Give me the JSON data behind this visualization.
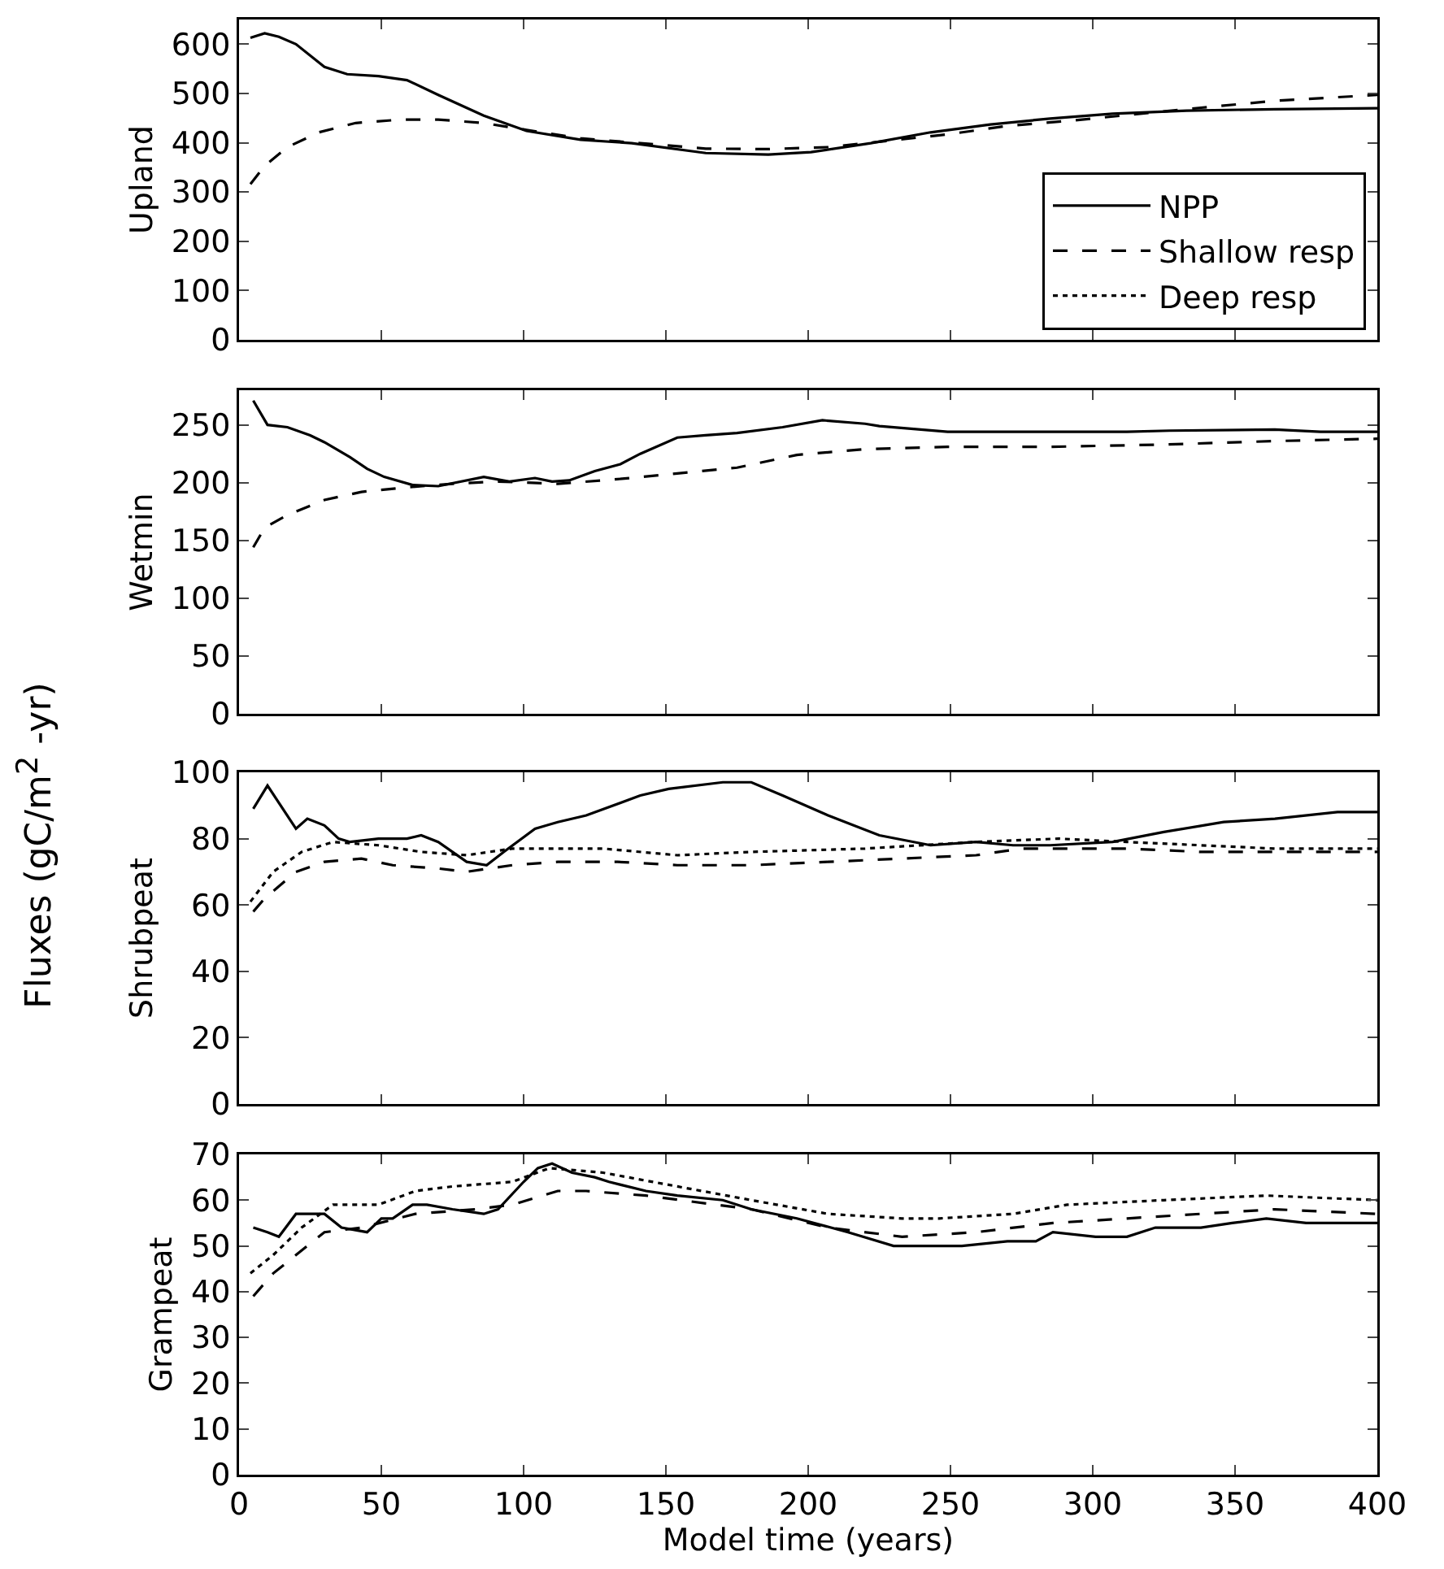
{
  "chart_data": [
    {
      "type": "line",
      "ylabel": "Upland",
      "annotations": [
        "Fluxes (gC/m$^{2}$ -yr)"
      ],
      "xlim": [
        0,
        400
      ],
      "xticks": [
        0,
        50,
        100,
        150,
        200,
        250,
        300,
        350,
        400
      ],
      "ylim": [
        0,
        650
      ],
      "yticks": [
        0,
        100,
        200,
        300,
        400,
        500,
        600
      ],
      "tick_labels": "y",
      "grid": false,
      "legend": "bottom right",
      "marker": "none",
      "series": [
        {
          "name": "NPP",
          "color": "#000000",
          "line_style": "solid",
          "x": [
            4,
            9,
            14,
            20,
            30,
            38,
            49,
            59,
            70,
            86,
            101,
            120,
            138,
            164,
            186,
            201,
            222,
            243,
            264,
            285,
            307,
            333,
            364,
            400
          ],
          "values": [
            613,
            622,
            615,
            600,
            554,
            539,
            535,
            527,
            497,
            455,
            424,
            406,
            399,
            379,
            376,
            381,
            399,
            421,
            437,
            449,
            459,
            465,
            468,
            470
          ]
        },
        {
          "name": "Shallow resp",
          "color": "#000000",
          "line_style": "dashed",
          "x": [
            4,
            9,
            17,
            28,
            41,
            57,
            70,
            86,
            101,
            120,
            141,
            164,
            186,
            207,
            225,
            249,
            270,
            291,
            312,
            338,
            364,
            400
          ],
          "values": [
            316,
            353,
            391,
            421,
            440,
            447,
            447,
            440,
            426,
            409,
            399,
            388,
            387,
            391,
            402,
            417,
            434,
            444,
            456,
            471,
            485,
            497
          ]
        },
        {
          "name": "Deep resp",
          "color": "#000000",
          "line_style": "dotted",
          "values": [
            null,
            null
          ]
        }
      ]
    },
    {
      "type": "line",
      "ylabel": "Wetmin",
      "xlim": [
        0,
        400
      ],
      "xticks": [
        0,
        50,
        100,
        150,
        200,
        250,
        300,
        350,
        400
      ],
      "ylim": [
        0,
        280
      ],
      "yticks": [
        0,
        50,
        100,
        150,
        200,
        250
      ],
      "tick_labels": "y",
      "grid": false,
      "marker": "none",
      "series": [
        {
          "color": "#000000",
          "line_style": "solid",
          "x": [
            5,
            10,
            17,
            25,
            30,
            39,
            45,
            51,
            61,
            70,
            86,
            95,
            104,
            110,
            116,
            125,
            134,
            141,
            154,
            164,
            175,
            191,
            205,
            220,
            225,
            249,
            275,
            312,
            327,
            364,
            380,
            400
          ],
          "values": [
            271,
            250,
            248,
            241,
            235,
            222,
            212,
            205,
            198,
            197,
            205,
            201,
            204,
            201,
            202,
            210,
            216,
            225,
            239,
            241,
            243,
            248,
            254,
            251,
            249,
            244,
            244,
            244,
            245,
            246,
            244,
            244
          ]
        },
        {
          "color": "#000000",
          "line_style": "dashed",
          "x": [
            5,
            9,
            17,
            30,
            43,
            59,
            75,
            91,
            112,
            133,
            154,
            175,
            196,
            220,
            249,
            285,
            325,
            364,
            400
          ],
          "values": [
            144,
            161,
            172,
            185,
            192,
            196,
            199,
            201,
            199,
            203,
            208,
            213,
            224,
            229,
            231,
            231,
            233,
            236,
            238
          ]
        }
      ]
    },
    {
      "type": "line",
      "ylabel": "Shrubpeat",
      "xlim": [
        0,
        400
      ],
      "xticks": [
        0,
        50,
        100,
        150,
        200,
        250,
        300,
        350,
        400
      ],
      "ylim": [
        0,
        100
      ],
      "yticks": [
        0,
        20,
        40,
        60,
        80,
        100
      ],
      "tick_labels": "y",
      "grid": false,
      "marker": "none",
      "series": [
        {
          "color": "#000000",
          "line_style": "solid",
          "x": [
            5,
            10,
            20,
            24,
            30,
            35,
            39,
            49,
            59,
            64,
            70,
            80,
            87,
            93,
            104,
            112,
            122,
            141,
            151,
            170,
            180,
            191,
            207,
            225,
            243,
            259,
            272,
            285,
            307,
            325,
            346,
            364,
            386,
            400
          ],
          "values": [
            89,
            96,
            83,
            86,
            84,
            80,
            79,
            80,
            80,
            81,
            79,
            73,
            72,
            76,
            83,
            85,
            87,
            93,
            95,
            97,
            97,
            93,
            87,
            81,
            78,
            79,
            78,
            78,
            79,
            82,
            85,
            86,
            88,
            88
          ]
        },
        {
          "color": "#000000",
          "line_style": "dashed",
          "x": [
            5,
            9,
            20,
            30,
            43,
            54,
            70,
            80,
            96,
            112,
            133,
            154,
            180,
            207,
            233,
            259,
            275,
            312,
            338,
            364,
            400
          ],
          "values": [
            58,
            62,
            70,
            73,
            74,
            72,
            71,
            70,
            72,
            73,
            73,
            72,
            72,
            73,
            74,
            75,
            77,
            77,
            76,
            76,
            76
          ]
        },
        {
          "color": "#000000",
          "line_style": "dotted",
          "x": [
            4,
            12,
            22,
            33,
            49,
            64,
            80,
            96,
            128,
            154,
            180,
            220,
            259,
            288,
            312,
            338,
            364,
            400
          ],
          "values": [
            61,
            70,
            76,
            79,
            78,
            76,
            75,
            77,
            77,
            75,
            76,
            77,
            79,
            80,
            79,
            78,
            77,
            77
          ]
        }
      ]
    },
    {
      "type": "line",
      "ylabel": "Grampeat",
      "xlabel": "Model time (years)",
      "xlim": [
        0,
        400
      ],
      "xticks": [
        0,
        50,
        100,
        150,
        200,
        250,
        300,
        350,
        400
      ],
      "ylim": [
        0,
        70
      ],
      "yticks": [
        0,
        10,
        20,
        30,
        40,
        50,
        60,
        70
      ],
      "grid": false,
      "marker": "none",
      "series": [
        {
          "color": "#000000",
          "line_style": "solid",
          "x": [
            5,
            10,
            14,
            20,
            30,
            36,
            45,
            50,
            54,
            61,
            66,
            75,
            86,
            91,
            100,
            105,
            110,
            117,
            125,
            130,
            143,
            154,
            170,
            180,
            196,
            214,
            230,
            241,
            254,
            270,
            280,
            286,
            301,
            312,
            322,
            338,
            349,
            361,
            375,
            400
          ],
          "values": [
            54,
            53,
            52,
            57,
            57,
            54,
            53,
            56,
            56,
            59,
            59,
            58,
            57,
            58,
            64,
            67,
            68,
            66,
            65,
            64,
            62,
            61,
            60,
            58,
            56,
            53,
            50,
            50,
            50,
            51,
            51,
            53,
            52,
            52,
            54,
            54,
            55,
            56,
            55,
            55
          ]
        },
        {
          "color": "#000000",
          "line_style": "dashed",
          "x": [
            5,
            12,
            20,
            30,
            43,
            62,
            83,
            96,
            112,
            122,
            143,
            180,
            207,
            233,
            259,
            286,
            312,
            338,
            364,
            400
          ],
          "values": [
            39,
            44,
            48,
            53,
            54,
            57,
            58,
            59,
            62,
            62,
            61,
            58,
            54,
            52,
            53,
            55,
            56,
            57,
            58,
            57
          ]
        },
        {
          "color": "#000000",
          "line_style": "dotted",
          "x": [
            4,
            12,
            22,
            33,
            49,
            62,
            75,
            96,
            109,
            128,
            154,
            180,
            207,
            233,
            246,
            272,
            291,
            325,
            361,
            400
          ],
          "values": [
            44,
            48,
            54,
            59,
            59,
            62,
            63,
            64,
            67,
            66,
            63,
            60,
            57,
            56,
            56,
            57,
            59,
            60,
            61,
            60
          ]
        }
      ]
    }
  ]
}
